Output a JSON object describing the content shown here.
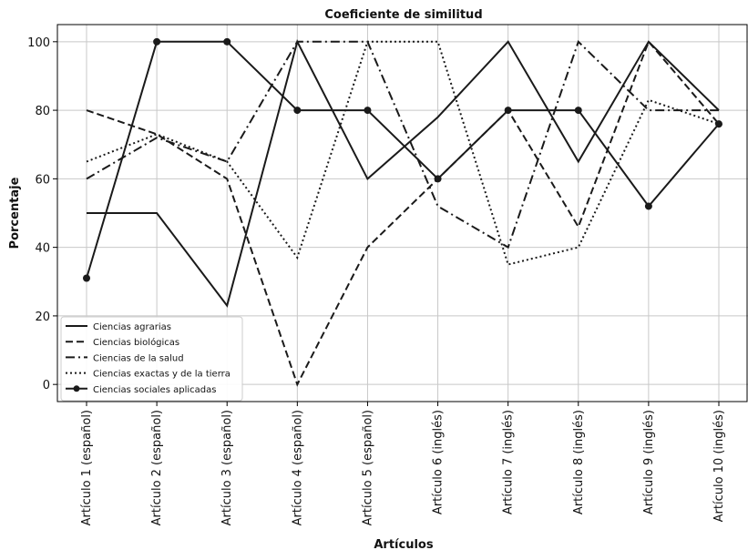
{
  "chart_data": {
    "type": "line",
    "title": "Coeficiente de similitud",
    "xlabel": "Artículos",
    "ylabel": "Porcentaje",
    "ylim": [
      -5,
      105
    ],
    "yticks": [
      0,
      20,
      40,
      60,
      80,
      100
    ],
    "grid": true,
    "legend_position": "bottom-left",
    "categories": [
      "Artículo 1 (español)",
      "Artículo 2 (español)",
      "Artículo 3 (español)",
      "Artículo 4 (español)",
      "Artículo 5 (español)",
      "Artículo 6 (inglés)",
      "Artículo 7 (inglés)",
      "Artículo 8 (inglés)",
      "Artículo 9 (inglés)",
      "Artículo 10 (inglés)"
    ],
    "series": [
      {
        "name": "Ciencias agrarias",
        "style": "solid",
        "marker": false,
        "values": [
          50,
          50,
          23,
          100,
          60,
          78,
          100,
          65,
          100,
          80
        ]
      },
      {
        "name": "Ciencias biológicas",
        "style": "dashed",
        "marker": false,
        "values": [
          80,
          73,
          60,
          0,
          40,
          60,
          80,
          46,
          100,
          76
        ]
      },
      {
        "name": "Ciencias de la salud",
        "style": "dashdot",
        "marker": false,
        "values": [
          60,
          72,
          65,
          100,
          100,
          52,
          40,
          100,
          80,
          80
        ]
      },
      {
        "name": "Ciencias exactas y de la tierra",
        "style": "dotted",
        "marker": false,
        "values": [
          65,
          73,
          65,
          37,
          100,
          100,
          35,
          40,
          83,
          76
        ]
      },
      {
        "name": "Ciencias sociales aplicadas",
        "style": "solid",
        "marker": true,
        "values": [
          31,
          100,
          100,
          80,
          80,
          60,
          80,
          80,
          52,
          76
        ]
      }
    ],
    "colors": {
      "line": "#1a1a1a",
      "grid": "#c8c8c8",
      "axis": "#000000",
      "background": "#ffffff"
    }
  }
}
